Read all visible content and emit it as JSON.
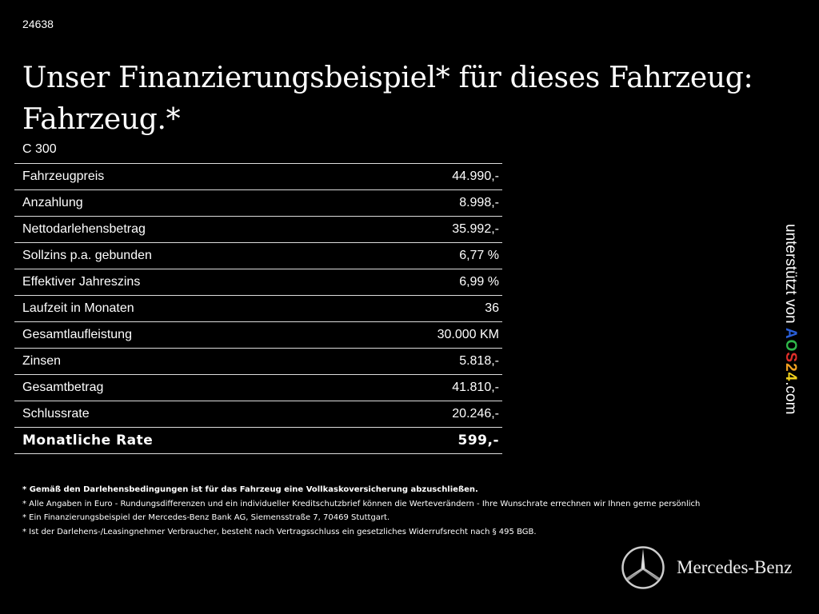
{
  "listing_id": "24638",
  "title_line1": "Unser Finanzierungsbeispiel* für dieses Fahrzeug:",
  "title_line2": "Fahrzeug.*",
  "model": "C 300",
  "rows": [
    {
      "label": "Fahrzeugpreis",
      "value": "44.990,-"
    },
    {
      "label": "Anzahlung",
      "value": "8.998,-"
    },
    {
      "label": "Nettodarlehensbetrag",
      "value": "35.992,-"
    },
    {
      "label": "Sollzins p.a. gebunden",
      "value": "6,77 %"
    },
    {
      "label": "Effektiver Jahreszins",
      "value": "6,99 %"
    },
    {
      "label": "Laufzeit in Monaten",
      "value": "36"
    },
    {
      "label": "Gesamtlaufleistung",
      "value": "30.000 KM"
    },
    {
      "label": "Zinsen",
      "value": "5.818,-"
    },
    {
      "label": "Gesamtbetrag",
      "value": "41.810,-"
    },
    {
      "label": "Schlussrate",
      "value": "20.246,-"
    }
  ],
  "monthly": {
    "label": "Monatliche Rate",
    "value": "599,-"
  },
  "notes": [
    "* Gemäß den Darlehensbedingungen ist für das Fahrzeug eine Vollkaskoversicherung abzuschließen.",
    "* Alle Angaben in Euro - Rundungsdifferenzen und ein individueller Kreditschutzbrief können die Werteverändern - Ihre Wunschrate errechnen wir Ihnen gerne persönlich",
    "* Ein Finanzierungsbeispiel der Mercedes-Benz Bank AG, Siemensstraße 7, 70469 Stuttgart.",
    "* Ist der Darlehens-/Leasingnehmer Verbraucher, besteht nach Vertragsschluss ein gesetzliches Widerrufsrecht nach § 495 BGB."
  ],
  "side": {
    "prefix": "unterstützt von ",
    "logo": [
      "A",
      "O",
      "S",
      "2",
      "4"
    ],
    "suffix": ".com",
    "colors": [
      "#2a5fd8",
      "#2fb84a",
      "#e0302a",
      "#f2a020",
      "#f2d21e"
    ]
  },
  "brand": {
    "name": "Mercedes-Benz",
    "icon": "mercedes-star-icon"
  }
}
